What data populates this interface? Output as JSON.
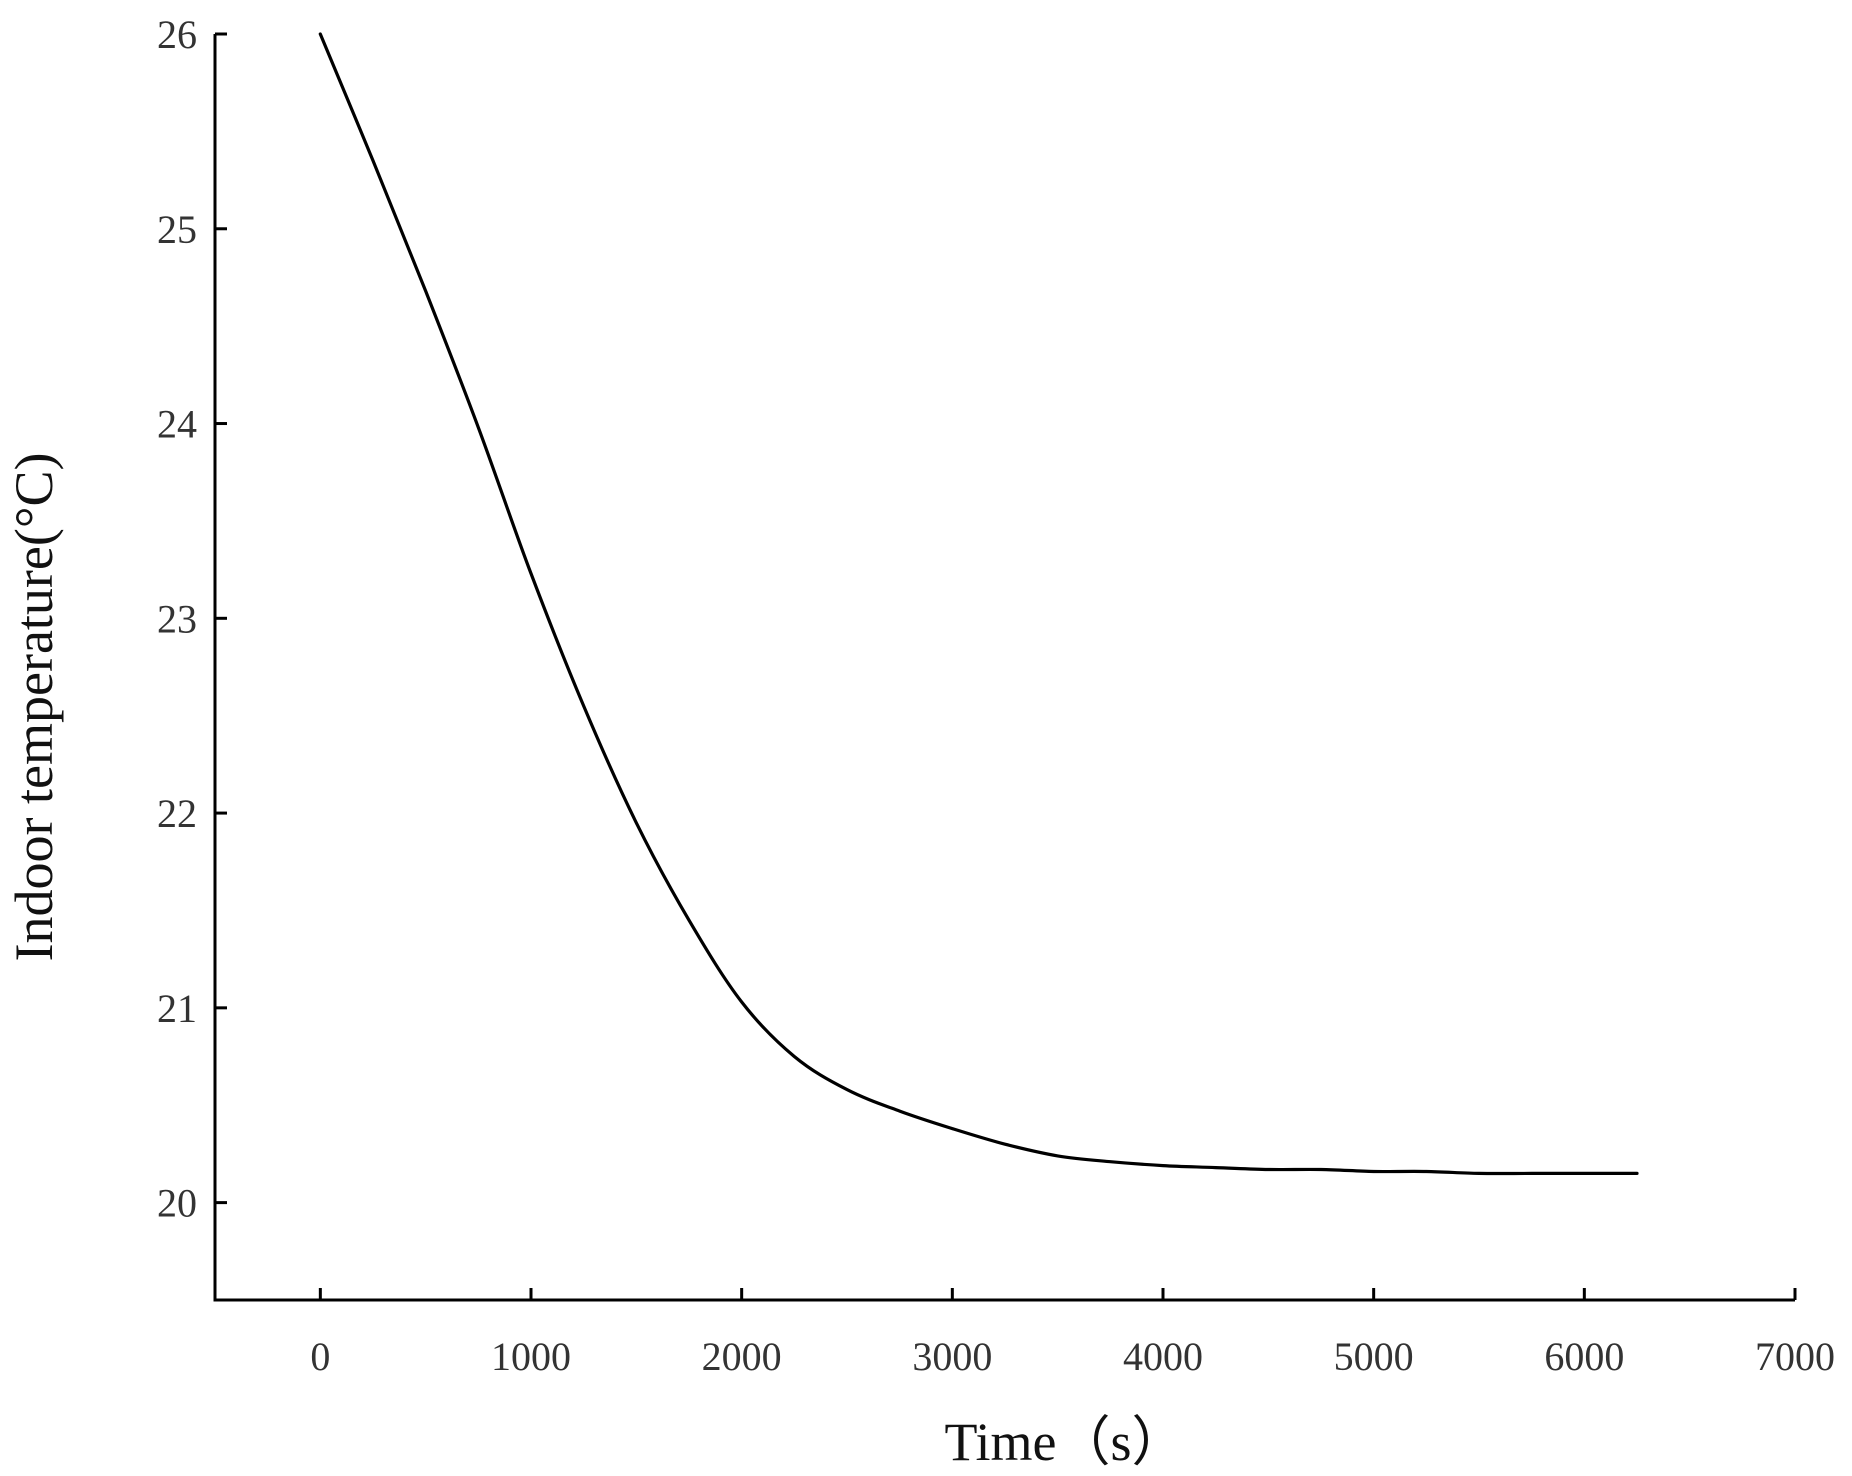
{
  "chart_data": {
    "type": "line",
    "title": "",
    "xlabel": "Time（s）",
    "ylabel": "Indoor temperature(°C)",
    "xlim": [
      -500,
      7000
    ],
    "ylim": [
      19.5,
      26
    ],
    "xticks": [
      0,
      1000,
      2000,
      3000,
      4000,
      5000,
      6000,
      7000
    ],
    "yticks": [
      20,
      21,
      22,
      23,
      24,
      25,
      26
    ],
    "grid": false,
    "legend": "none",
    "series": [
      {
        "color": "#000000",
        "x": [
          0,
          250,
          500,
          750,
          1000,
          1250,
          1500,
          1750,
          2000,
          2250,
          2500,
          2750,
          3000,
          3250,
          3500,
          3750,
          4000,
          4250,
          4500,
          4750,
          5000,
          5250,
          5500,
          5750,
          6000,
          6250
        ],
        "y": [
          26.0,
          25.35,
          24.68,
          23.98,
          23.23,
          22.55,
          21.95,
          21.45,
          21.03,
          20.75,
          20.58,
          20.47,
          20.38,
          20.3,
          20.24,
          20.21,
          20.19,
          20.18,
          20.17,
          20.17,
          20.16,
          20.16,
          20.15,
          20.15,
          20.15,
          20.15
        ]
      }
    ]
  }
}
